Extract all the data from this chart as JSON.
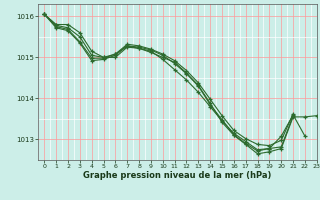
{
  "title": "Graphe pression niveau de la mer (hPa)",
  "background_color": "#cceee8",
  "grid_color_major": "#ff9999",
  "grid_color_minor": "#ffffff",
  "line_color": "#2d6a2d",
  "xlim": [
    -0.5,
    23
  ],
  "ylim": [
    1012.5,
    1016.3
  ],
  "yticks": [
    1013,
    1014,
    1015,
    1016
  ],
  "xticks": [
    0,
    1,
    2,
    3,
    4,
    5,
    6,
    7,
    8,
    9,
    10,
    11,
    12,
    13,
    14,
    15,
    16,
    17,
    18,
    19,
    20,
    21,
    22,
    23
  ],
  "series": [
    [
      1016.05,
      1015.8,
      1015.8,
      1015.6,
      1015.15,
      1015.0,
      1015.0,
      1015.25,
      1015.22,
      1015.15,
      1014.95,
      1014.7,
      1014.45,
      1014.15,
      1013.8,
      1013.45,
      1013.15,
      1012.95,
      1012.75,
      1012.78,
      1012.82,
      1013.58,
      null,
      null
    ],
    [
      1016.05,
      1015.78,
      1015.72,
      1015.5,
      1015.05,
      1015.0,
      1015.08,
      1015.28,
      1015.25,
      1015.18,
      1015.05,
      1014.85,
      1014.6,
      1014.3,
      1013.85,
      1013.48,
      1013.12,
      1012.9,
      1012.72,
      1012.78,
      1013.08,
      1013.6,
      1013.08,
      null
    ],
    [
      1016.05,
      1015.75,
      1015.68,
      1015.38,
      1014.98,
      1014.98,
      1015.08,
      1015.32,
      1015.28,
      1015.2,
      1015.08,
      1014.92,
      1014.68,
      1014.38,
      1013.98,
      1013.58,
      1013.22,
      1013.02,
      1012.88,
      1012.85,
      1012.98,
      1013.62,
      null,
      null
    ],
    [
      1016.05,
      1015.72,
      1015.65,
      1015.35,
      1014.92,
      1014.95,
      1015.05,
      1015.28,
      1015.22,
      1015.12,
      1015.0,
      1014.88,
      1014.62,
      1014.32,
      1013.88,
      1013.42,
      1013.1,
      1012.88,
      1012.65,
      1012.7,
      1012.78,
      1013.55,
      1013.55,
      1013.58
    ]
  ]
}
